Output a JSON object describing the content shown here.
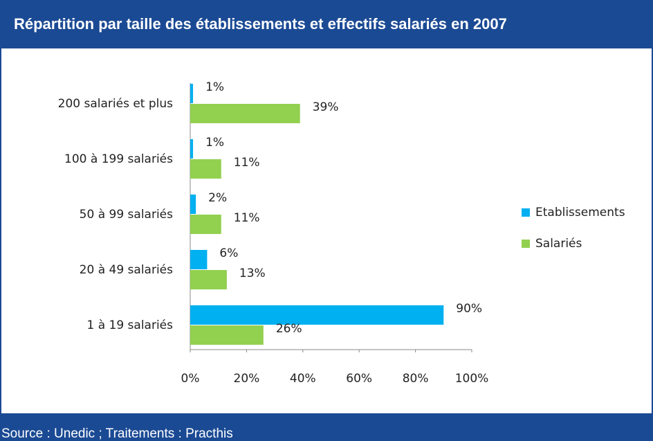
{
  "chart_data": {
    "type": "bar",
    "orientation": "horizontal",
    "title": "Répartition par taille des établissements et effectifs salariés en 2007",
    "source": "Source : Unedic ; Traitements : Practhis",
    "categories": [
      "200 salariés et plus",
      "100 à 199 salariés",
      "50 à 99 salariés",
      "20 à 49 salariés",
      "1 à 19 salariés"
    ],
    "series": [
      {
        "name": "Etablissements",
        "color": "#00b0f0",
        "values": [
          1,
          1,
          2,
          6,
          90
        ],
        "value_labels": [
          "1%",
          "1%",
          "2%",
          "6%",
          "90%"
        ]
      },
      {
        "name": "Salariés",
        "color": "#92d050",
        "values": [
          39,
          11,
          11,
          13,
          26
        ],
        "value_labels": [
          "39%",
          "11%",
          "11%",
          "13%",
          "26%"
        ]
      }
    ],
    "xlim": [
      0,
      100
    ],
    "xticks": [
      {
        "value": 0,
        "label": "0%"
      },
      {
        "value": 20,
        "label": "20%"
      },
      {
        "value": 40,
        "label": "40%"
      },
      {
        "value": 60,
        "label": "60%"
      },
      {
        "value": 80,
        "label": "80%"
      },
      {
        "value": 100,
        "label": "100%"
      }
    ],
    "legend": "right"
  }
}
